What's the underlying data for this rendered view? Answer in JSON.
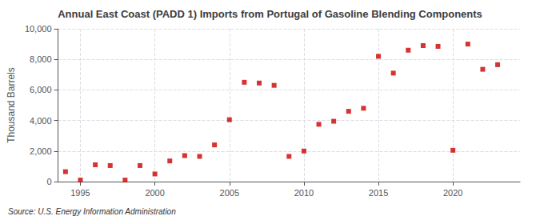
{
  "chart_data": {
    "type": "scatter",
    "title": "Annual East Coast (PADD 1) Imports from Portugal of Gasoline Blending Components",
    "ylabel": "Thousand Barrels",
    "source": "Source: U.S. Energy Information Administration",
    "x": [
      1994,
      1995,
      1996,
      1997,
      1998,
      1999,
      2000,
      2001,
      2002,
      2003,
      2004,
      2005,
      2006,
      2007,
      2008,
      2009,
      2010,
      2011,
      2012,
      2013,
      2014,
      2015,
      2016,
      2017,
      2018,
      2019,
      2020,
      2021,
      2022,
      2023
    ],
    "values": [
      650,
      100,
      1100,
      1050,
      100,
      1050,
      500,
      1350,
      1700,
      1650,
      2400,
      4050,
      6500,
      6450,
      6300,
      1650,
      2000,
      3750,
      3950,
      4600,
      4800,
      8200,
      7100,
      8600,
      8900,
      8850,
      2050,
      9000,
      7350,
      7650
    ],
    "color": "#cc0000",
    "marker": "square",
    "xlim": [
      1993.5,
      2024.5
    ],
    "xticks": [
      1995,
      2000,
      2005,
      2010,
      2015,
      2020
    ],
    "ylim": [
      0,
      10000
    ],
    "yticks": [
      0,
      {
        "value": 2000,
        "label": "2,000"
      },
      {
        "value": 4000,
        "label": "4,000"
      },
      {
        "value": 6000,
        "label": "6,000"
      },
      {
        "value": 8000,
        "label": "8,000"
      },
      {
        "value": 10000,
        "label": "10,000"
      }
    ],
    "grid": true
  }
}
